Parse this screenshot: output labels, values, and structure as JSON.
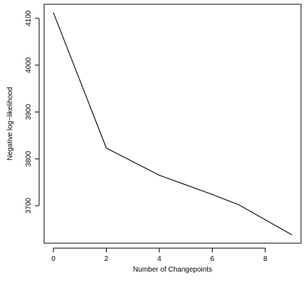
{
  "chart_data": {
    "type": "line",
    "title": "",
    "xlabel": "Number of Changepoints",
    "ylabel": "Negative log−likelihood",
    "x": [
      0,
      2,
      4,
      6,
      7,
      9
    ],
    "series": [
      {
        "values": [
          4112,
          3823,
          3765,
          3724,
          3702,
          3638
        ],
        "color": "#000000"
      }
    ],
    "xlim": [
      -0.35,
      9.35
    ],
    "ylim": [
      3620,
      4130
    ],
    "xticks": [
      0,
      2,
      4,
      6,
      8
    ],
    "xtick_labels": [
      "0",
      "2",
      "4",
      "6",
      "8"
    ],
    "yticks": [
      3700,
      3800,
      3900,
      4000,
      4100
    ],
    "ytick_labels": [
      "3700",
      "3800",
      "3900",
      "4000",
      "4100"
    ],
    "grid": false,
    "legend": "none"
  }
}
